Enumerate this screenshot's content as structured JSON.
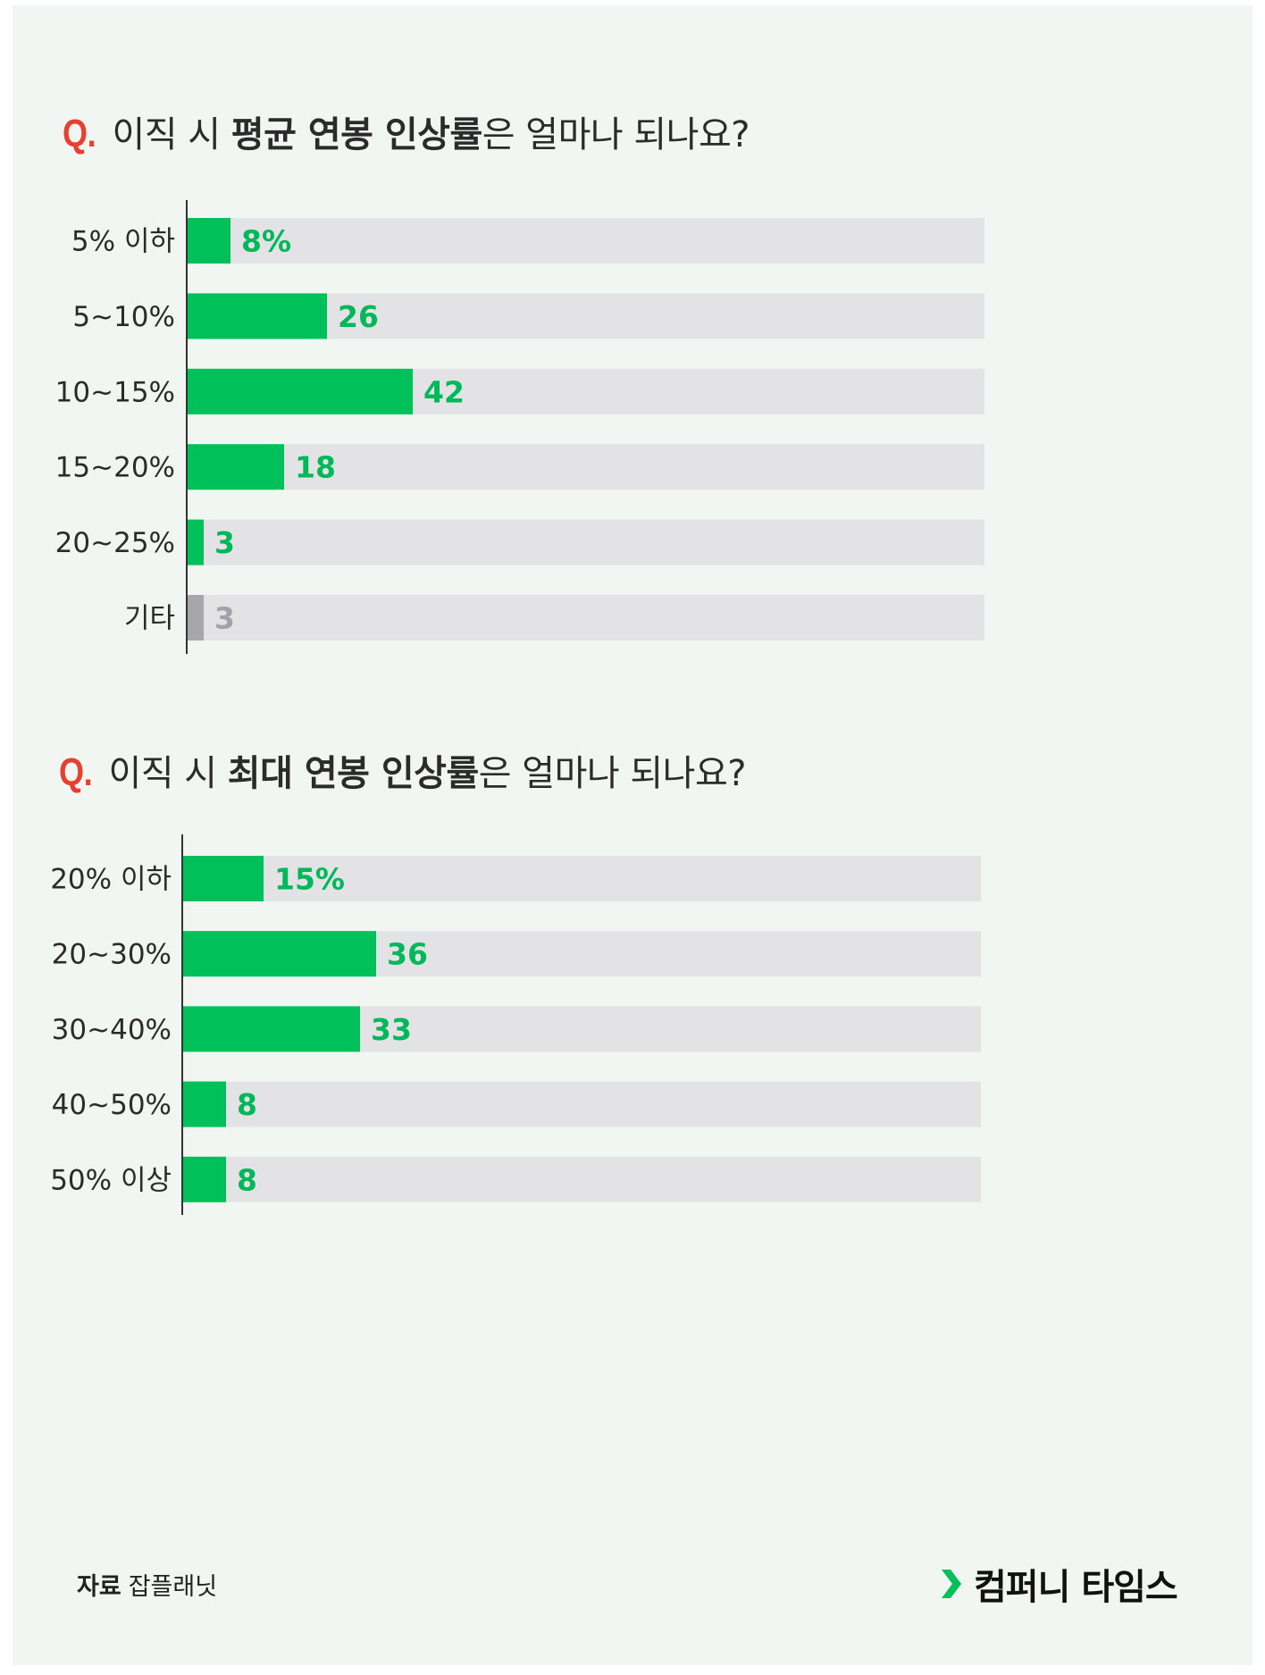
{
  "colors": {
    "bar_green": "#00c05a",
    "bar_gray": "#a6a6ac",
    "track": "#e3e3e6",
    "label_green": "#00b85a",
    "label_gray": "#a2a2a8",
    "q_mark": "#e8402f",
    "axis": "#333333"
  },
  "questions": [
    {
      "mark": "Q.",
      "text_pre": "이직 시 ",
      "text_bold": "평균 연봉 인상률",
      "text_post": "은 얼마나 되나요?"
    },
    {
      "mark": "Q.",
      "text_pre": "이직 시 ",
      "text_bold": "최대 연봉 인상률",
      "text_post": "은 얼마나 되나요?"
    }
  ],
  "chart_data": [
    {
      "type": "bar",
      "orientation": "horizontal",
      "title": "이직 시 평균 연봉 인상률은 얼마나 되나요?",
      "categories": [
        "5% 이하",
        "5~10%",
        "10~15%",
        "15~20%",
        "20~25%",
        "기타"
      ],
      "values": [
        8,
        26,
        42,
        18,
        3,
        3
      ],
      "value_labels": [
        "8%",
        "26",
        "42",
        "18",
        "3",
        "3"
      ],
      "highlight": [
        "green",
        "green",
        "green",
        "green",
        "green",
        "gray"
      ],
      "xlim": [
        0,
        100
      ],
      "unit": "%",
      "grid": false,
      "legend": "none"
    },
    {
      "type": "bar",
      "orientation": "horizontal",
      "title": "이직 시 최대 연봉 인상률은 얼마나 되나요?",
      "categories": [
        "20% 이하",
        "20~30%",
        "30~40%",
        "40~50%",
        "50% 이상"
      ],
      "values": [
        15,
        36,
        33,
        8,
        8
      ],
      "value_labels": [
        "15%",
        "36",
        "33",
        "8",
        "8"
      ],
      "highlight": [
        "green",
        "green",
        "green",
        "green",
        "green"
      ],
      "xlim": [
        0,
        100
      ],
      "unit": "%",
      "grid": false,
      "legend": "none"
    }
  ],
  "footer": {
    "source_label": "자료",
    "source_value": "잡플래닛",
    "brand": "컴퍼니 타임스"
  }
}
